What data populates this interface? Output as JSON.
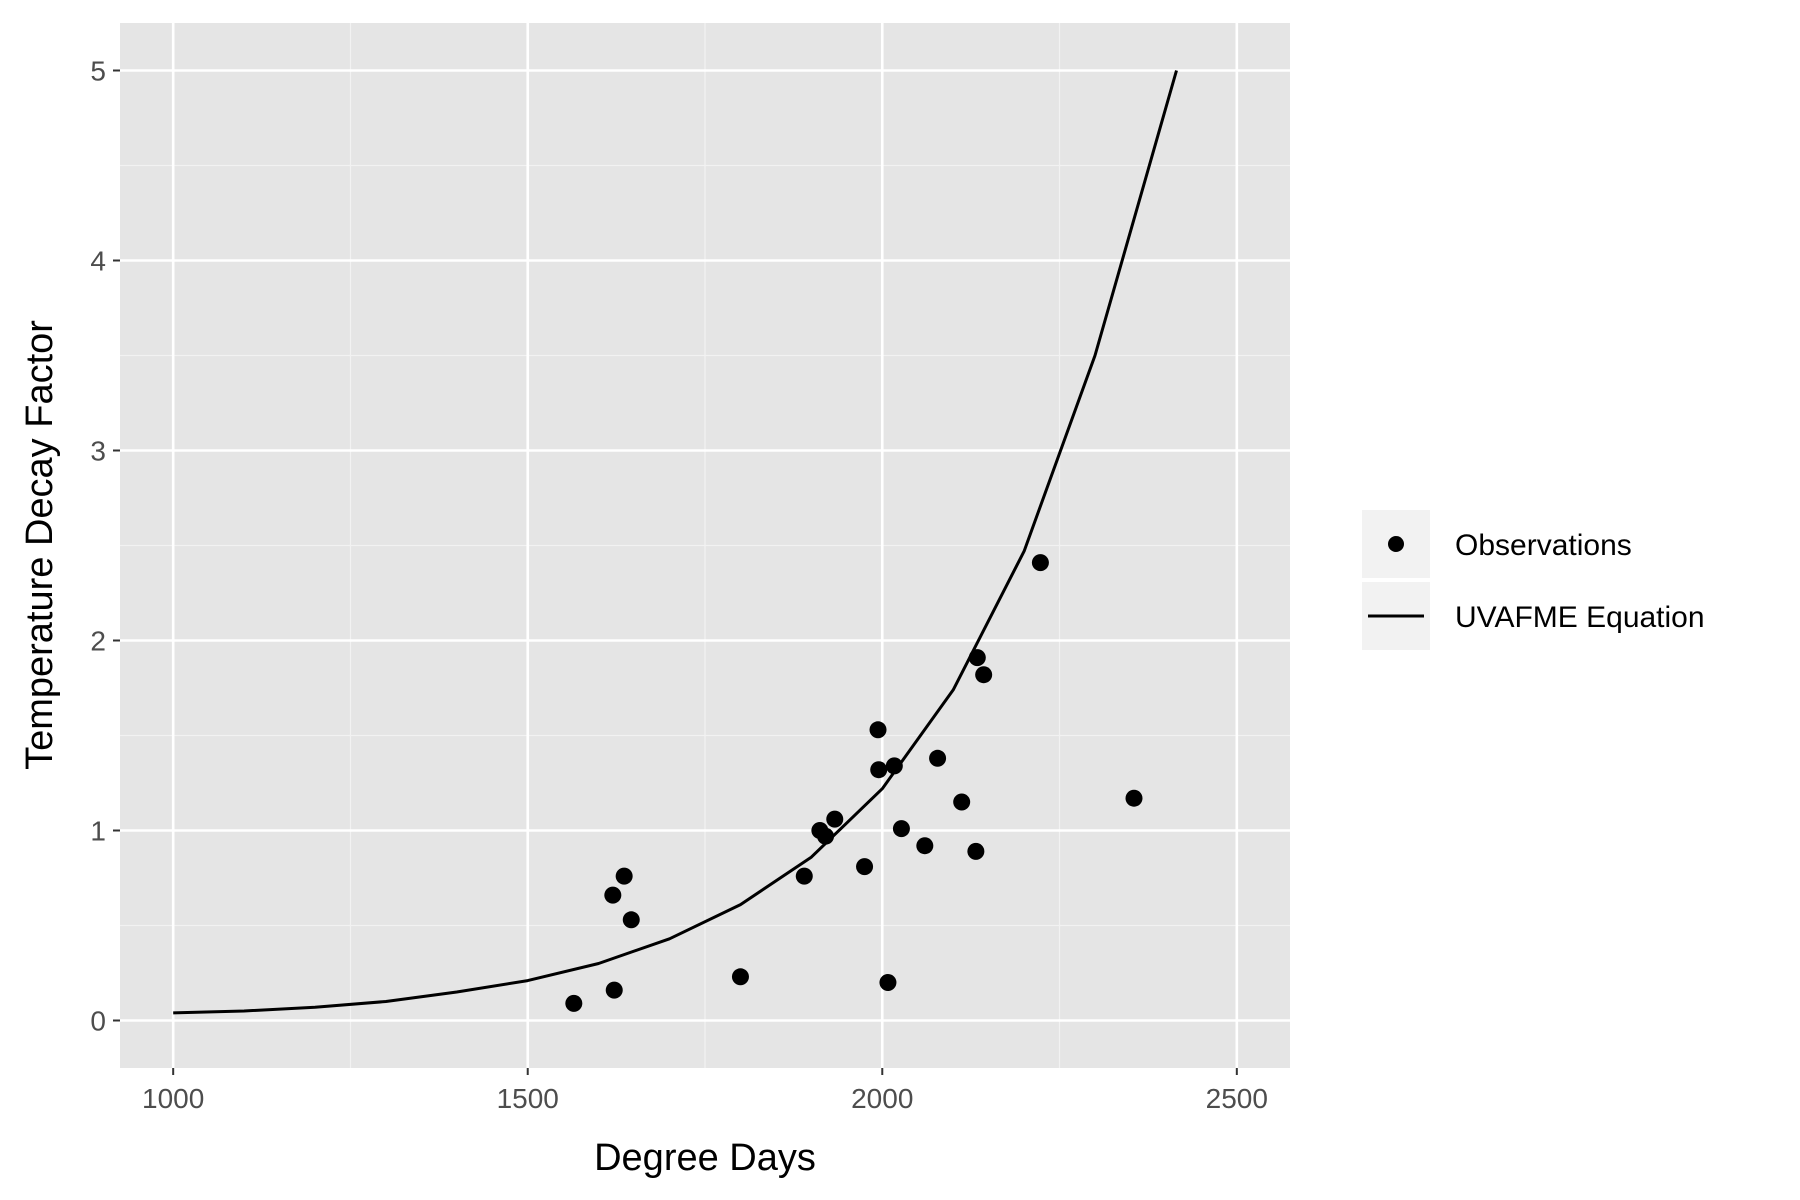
{
  "chart_data": {
    "type": "scatter",
    "title": "",
    "xlabel": "Degree Days",
    "ylabel": "Temperature Decay Factor",
    "xlim": [
      925,
      2575
    ],
    "ylim": [
      -0.25,
      5.25
    ],
    "xticks": [
      1000,
      1500,
      2000,
      2500
    ],
    "xtick_labels": [
      "1000",
      "1500",
      "2000",
      "2500"
    ],
    "yticks": [
      0,
      1,
      2,
      3,
      4,
      5
    ],
    "ytick_labels": [
      "0",
      "1",
      "2",
      "3",
      "4",
      "5"
    ],
    "grid": true,
    "legend_position": "right",
    "series": [
      {
        "name": "Observations",
        "kind": "points",
        "color": "#000000",
        "x": [
          1565,
          1620,
          1622,
          1636,
          1646,
          1800,
          1890,
          1912,
          1920,
          1933,
          1975,
          1994,
          1995,
          2008,
          2017,
          2027,
          2060,
          2078,
          2112,
          2132,
          2134,
          2143,
          2223,
          2355
        ],
        "y": [
          0.09,
          0.66,
          0.16,
          0.76,
          0.53,
          0.23,
          0.76,
          1.0,
          0.97,
          1.06,
          0.81,
          1.53,
          1.32,
          0.2,
          1.34,
          1.01,
          0.92,
          1.38,
          1.15,
          0.89,
          1.91,
          1.82,
          2.41,
          1.17
        ]
      },
      {
        "name": "UVAFME Equation",
        "kind": "line",
        "color": "#000000",
        "x": [
          1000,
          1100,
          1200,
          1300,
          1400,
          1500,
          1600,
          1700,
          1800,
          1900,
          2000,
          2100,
          2200,
          2300,
          2415
        ],
        "y": [
          0.04,
          0.05,
          0.07,
          0.1,
          0.15,
          0.21,
          0.3,
          0.43,
          0.61,
          0.86,
          1.22,
          1.74,
          2.47,
          3.5,
          5.0
        ]
      }
    ]
  },
  "colors": {
    "panel_background": "#e5e5e5",
    "grid_major": "#ffffff",
    "grid_minor": "#f2f2f2",
    "legend_key_background": "#f2f2f2",
    "ink": "#000000",
    "tick_text": "#4d4d4d"
  }
}
